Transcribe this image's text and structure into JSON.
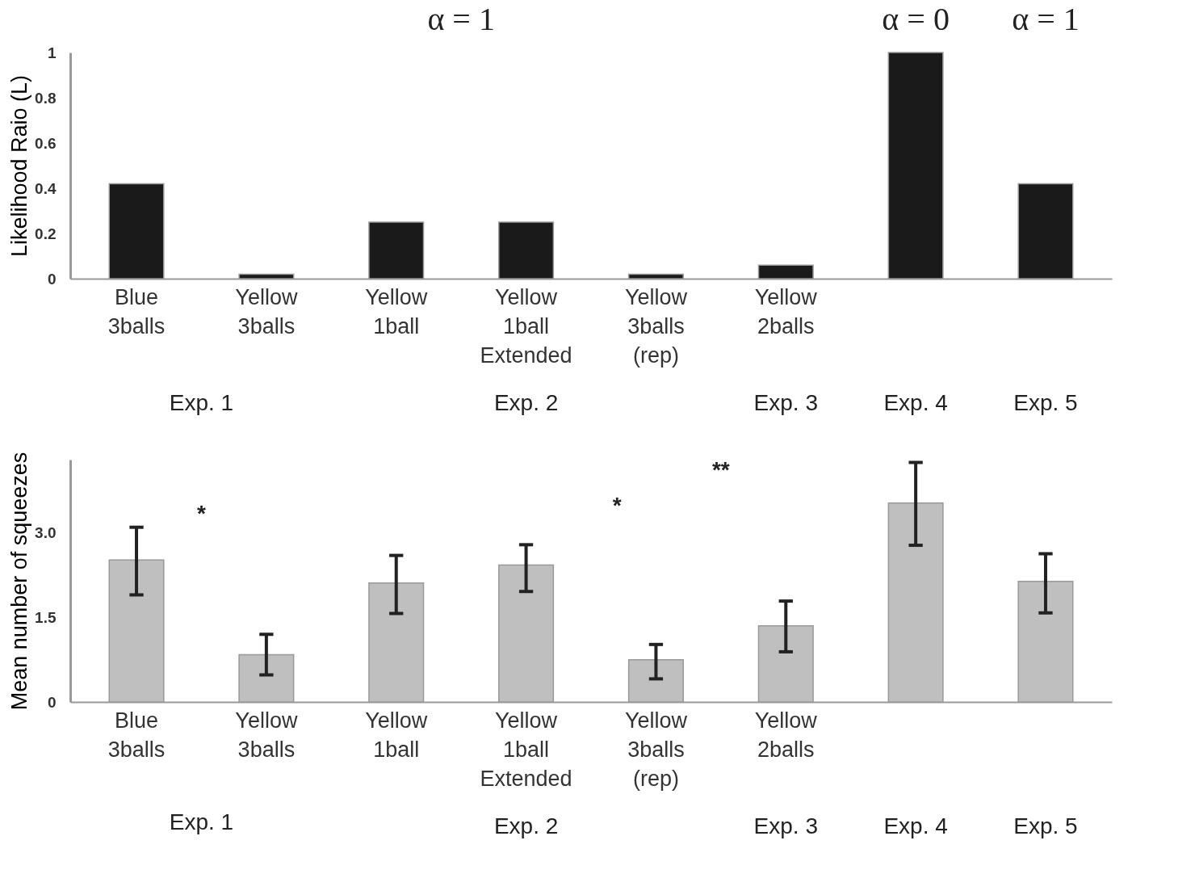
{
  "chart_data": [
    {
      "type": "bar",
      "ylabel": "Likelihood Raio (L)",
      "categories": [
        "Blue\n3balls",
        "Yellow\n3balls",
        "Yellow\n1ball",
        "Yellow\n1ball\nExtended",
        "Yellow\n3balls\n(rep)",
        "Yellow\n2balls",
        null,
        null
      ],
      "values": [
        0.42,
        0.02,
        0.25,
        0.25,
        0.02,
        0.06,
        1.0,
        0.42
      ],
      "color": "#1a1a1a",
      "ylim": [
        0,
        1
      ],
      "yticks": [
        0,
        0.2,
        0.4,
        0.6,
        0.8,
        1
      ],
      "grid": false,
      "annotations": [
        "α = 1",
        "α = 0",
        "α = 1",
        "Exp. 1",
        "Exp. 2",
        "Exp. 3",
        "Exp. 4",
        "Exp. 5"
      ]
    },
    {
      "type": "bar",
      "ylabel": "Mean number of squeezes",
      "categories": [
        "Blue\n3balls",
        "Yellow\n3balls",
        "Yellow\n1ball",
        "Yellow\n1ball\nExtended",
        "Yellow\n3balls\n(rep)",
        "Yellow\n2balls",
        null,
        null
      ],
      "values": [
        2.52,
        0.84,
        2.11,
        2.43,
        0.75,
        1.35,
        3.53,
        2.14
      ],
      "color": "#bfbfbf",
      "ylim": [
        0,
        4.3
      ],
      "yticks": [
        0,
        1.5,
        {
          "value": 3,
          "label": "3.0"
        }
      ],
      "grid": false,
      "errors": [
        [
          1.9,
          3.1
        ],
        [
          0.48,
          1.2
        ],
        [
          1.57,
          2.6
        ],
        [
          1.96,
          2.79
        ],
        [
          0.41,
          1.02
        ],
        [
          0.89,
          1.79
        ],
        [
          2.78,
          4.25
        ],
        [
          1.58,
          2.63
        ]
      ],
      "annotations": [
        "*",
        "*",
        "**",
        "Exp. 1",
        "Exp. 2",
        "Exp. 3",
        "Exp. 4",
        "Exp. 5"
      ]
    }
  ]
}
